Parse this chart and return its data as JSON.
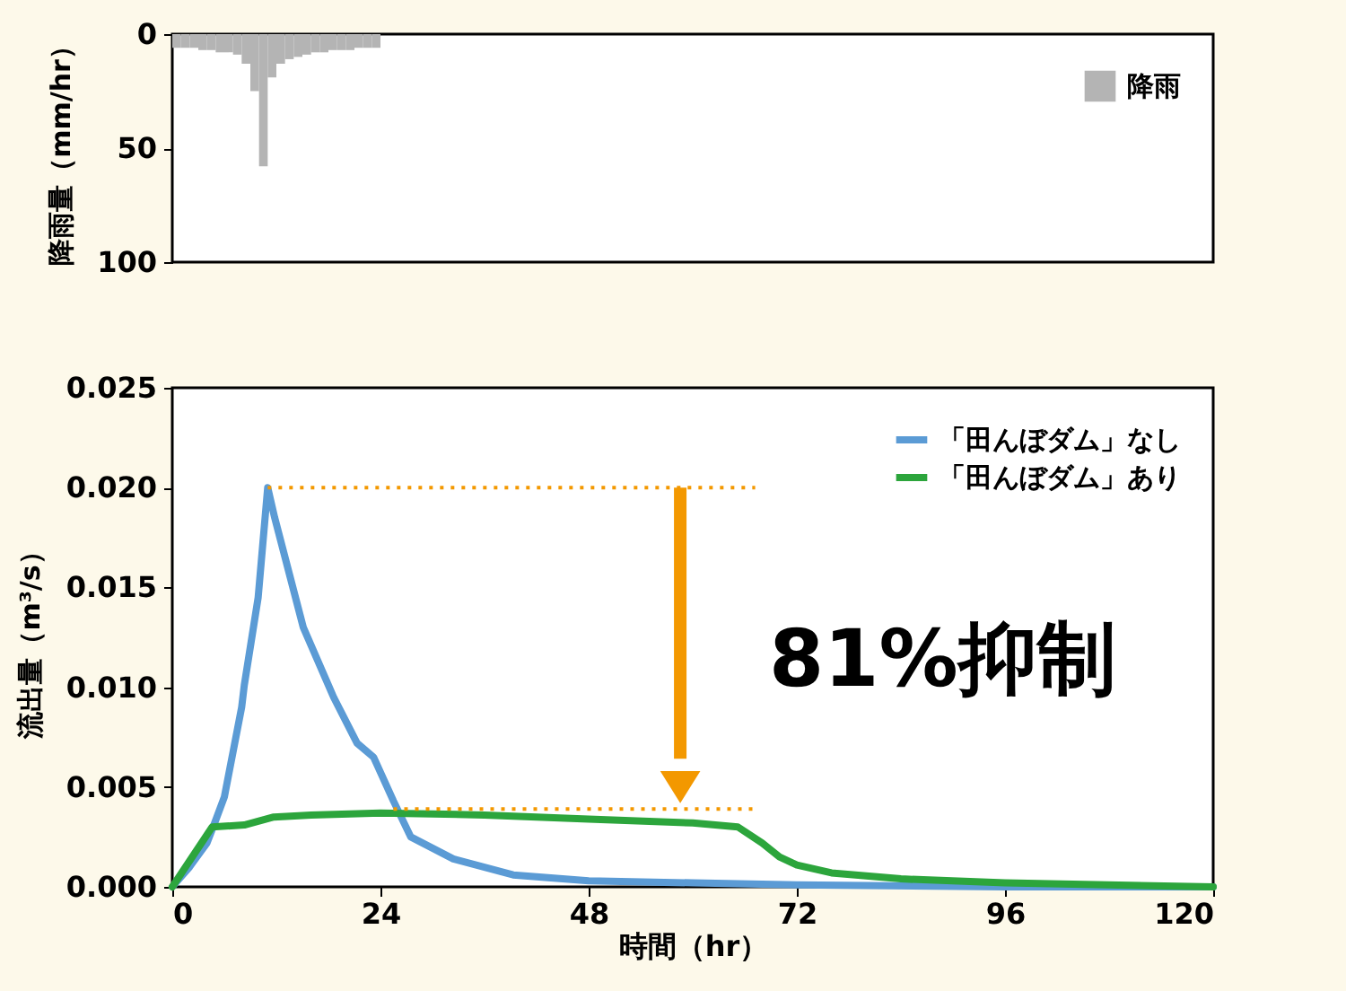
{
  "chart_data": [
    {
      "type": "histogram",
      "ylabel": "降雨量（mm/hr）",
      "bins": [
        0,
        1,
        2,
        3,
        4,
        5,
        6,
        7,
        8,
        9,
        10,
        11,
        12,
        13,
        14,
        15,
        16,
        17,
        18,
        19,
        20,
        21,
        22,
        23,
        24
      ],
      "series": [
        {
          "name": "降雨",
          "color": "#b4b4b4",
          "values": [
            6,
            6,
            6,
            7,
            7,
            8,
            8,
            9,
            13,
            25,
            58,
            19,
            13,
            11,
            10,
            9,
            8,
            8,
            7,
            7,
            7,
            6,
            6,
            6
          ]
        }
      ],
      "xlim": [
        0,
        120
      ],
      "ylim": [
        100,
        0
      ],
      "yticks": [
        0,
        50,
        100
      ],
      "tick_labels": "y",
      "legend": "top right"
    },
    {
      "type": "line",
      "xlabel": "時間（hr）",
      "ylabel": "流出量（m³/s）",
      "xlim": [
        0,
        120
      ],
      "xticks": [
        0,
        24,
        48,
        72,
        96,
        120
      ],
      "ylim": [
        0,
        0.025
      ],
      "yticks": [
        {
          "value": 0,
          "label": "0.000"
        },
        {
          "value": 0.005,
          "label": "0.005"
        },
        {
          "value": 0.01,
          "label": "0.010"
        },
        {
          "value": 0.015,
          "label": "0.015"
        },
        {
          "value": 0.02,
          "label": "0.020"
        },
        {
          "value": 0.025,
          "label": "0.025"
        }
      ],
      "legend": "top right",
      "series": [
        {
          "name": "「田んぼダム」なし",
          "color": "#5b9bd5",
          "x": [
            0,
            2,
            4,
            4.8,
            6,
            8,
            8.3,
            9.9,
            11,
            11.8,
            15.1,
            18.6,
            21.3,
            23.2,
            25.5,
            27.5,
            32.4,
            39.3,
            48,
            60,
            72,
            96,
            120
          ],
          "values": [
            0,
            0.001,
            0.0022,
            0.0031,
            0.0045,
            0.009,
            0.0101,
            0.0145,
            0.02,
            0.0185,
            0.013,
            0.0095,
            0.0072,
            0.0065,
            0.0043,
            0.0025,
            0.0014,
            0.0006,
            0.0003,
            0.0002,
            0.0001,
            0,
            0
          ]
        },
        {
          "name": "「田んぼダム」あり",
          "color": "#2ca53c",
          "x": [
            0,
            4.6,
            8.3,
            10,
            11.7,
            16,
            24,
            36,
            48,
            60,
            65.2,
            68,
            70,
            72,
            76,
            84,
            96,
            120
          ],
          "values": [
            0,
            0.003,
            0.0031,
            0.0033,
            0.0035,
            0.0036,
            0.0037,
            0.0036,
            0.0034,
            0.0032,
            0.003,
            0.0022,
            0.0015,
            0.0011,
            0.0007,
            0.0004,
            0.0002,
            0
          ]
        }
      ],
      "ref_lines": [
        {
          "axis": "y",
          "value": 0.02,
          "color": "#f39800",
          "line_style": "dotted"
        },
        {
          "axis": "y",
          "value": 0.0039,
          "color": "#f39800",
          "line_style": "dotted"
        }
      ],
      "annotations": [
        "81%抑制"
      ]
    }
  ]
}
